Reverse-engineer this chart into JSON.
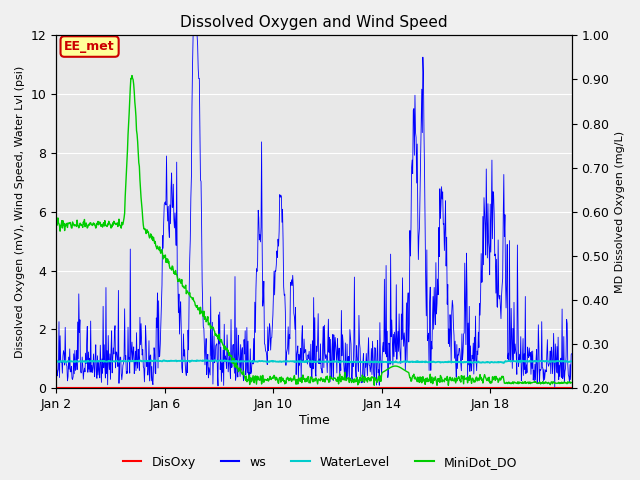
{
  "title": "Dissolved Oxygen and Wind Speed",
  "ylabel_left": "Dissolved Oxygen (mV), Wind Speed, Water Lvl (psi)",
  "ylabel_right": "MD Dissolved Oxygen (mg/L)",
  "xlabel": "Time",
  "ylim_left": [
    0,
    12
  ],
  "ylim_right": [
    0.2,
    1.0
  ],
  "xtick_labels": [
    "Jan 2",
    "Jan 6",
    "Jan 10",
    "Jan 14",
    "Jan 18"
  ],
  "xtick_positions": [
    0,
    4,
    8,
    12,
    16
  ],
  "yticks_left": [
    0,
    2,
    4,
    6,
    8,
    10,
    12
  ],
  "yticks_right": [
    0.2,
    0.3,
    0.4,
    0.5,
    0.6,
    0.7,
    0.8,
    0.9,
    1.0
  ],
  "legend_labels": [
    "DisOxy",
    "ws",
    "WaterLevel",
    "MiniDot_DO"
  ],
  "legend_colors": [
    "#ff0000",
    "#0000ff",
    "#00cccc",
    "#00cc00"
  ],
  "annotation_text": "EE_met",
  "annotation_color": "#cc0000",
  "annotation_bg": "#ffff99",
  "fig_bg_color": "#f0f0f0",
  "ax_bg_color": "#e8e8e8",
  "disoxy_color": "#ff0000",
  "ws_color": "#0000ff",
  "waterlevel_color": "#00cccc",
  "minidot_color": "#00cc00",
  "grid_color": "#ffffff",
  "xlim": [
    0,
    19
  ]
}
